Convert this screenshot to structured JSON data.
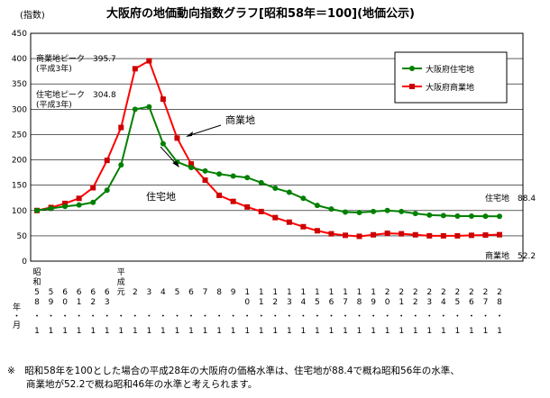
{
  "title": "大阪府の地価動向指数グラフ[昭和58年＝100](地価公示)",
  "ylabel": "(指数)",
  "row_labels": {
    "year": "年",
    "dot": "・",
    "month": "月"
  },
  "note_lines": [
    "※　昭和58年を100とした場合の平成28年の大阪府の価格水準は、住宅地が88.4で概ね昭和56年の水準、",
    "　　商業地が52.2で概ね昭和46年の水準と考えられます。"
  ],
  "annotations": {
    "commercial_peak": "商業地ピーク　395.7",
    "commercial_peak_year": "(平成3年)",
    "residential_peak": "住宅地ピーク　304.8",
    "residential_peak_year": "(平成3年)",
    "commercial_label": "商業地",
    "residential_label": "住宅地",
    "residential_end": "住宅地　88.4",
    "commercial_end": "商業地　52.2"
  },
  "colors": {
    "residential": "#008000",
    "commercial": "#ff0000",
    "marker_commercial": "#cc0000",
    "grid": "#000000"
  },
  "chart_data": {
    "type": "line",
    "title": "大阪府の地価動向指数グラフ[昭和58年＝100](地価公示)",
    "ylabel": "(指数)",
    "ylim": [
      0,
      450
    ],
    "yticks": [
      0,
      50,
      100,
      150,
      200,
      250,
      300,
      350,
      400,
      450
    ],
    "grid": true,
    "legend_position": "top-right",
    "x_tick_labels": [
      [
        "昭",
        "和",
        "5",
        "8"
      ],
      [
        "5",
        "9"
      ],
      [
        "6",
        "0"
      ],
      [
        "6",
        "1"
      ],
      [
        "6",
        "2"
      ],
      [
        "6",
        "3"
      ],
      [
        "平",
        "成",
        "元"
      ],
      [
        "2"
      ],
      [
        "3"
      ],
      [
        "4"
      ],
      [
        "5"
      ],
      [
        "6"
      ],
      [
        "7"
      ],
      [
        "8"
      ],
      [
        "9"
      ],
      [
        "1",
        "0"
      ],
      [
        "1",
        "1"
      ],
      [
        "1",
        "2"
      ],
      [
        "1",
        "3"
      ],
      [
        "1",
        "4"
      ],
      [
        "1",
        "5"
      ],
      [
        "1",
        "6"
      ],
      [
        "1",
        "7"
      ],
      [
        "1",
        "8"
      ],
      [
        "1",
        "9"
      ],
      [
        "2",
        "0"
      ],
      [
        "2",
        "1"
      ],
      [
        "2",
        "2"
      ],
      [
        "2",
        "3"
      ],
      [
        "2",
        "4"
      ],
      [
        "2",
        "5"
      ],
      [
        "2",
        "6"
      ],
      [
        "2",
        "7"
      ],
      [
        "2",
        "8"
      ]
    ],
    "month_labels": [
      "1",
      "1",
      "1",
      "1",
      "1",
      "1",
      "1",
      "1",
      "1",
      "1",
      "1",
      "1",
      "1",
      "1",
      "1",
      "1",
      "1",
      "1",
      "1",
      "1",
      "1",
      "1",
      "1",
      "1",
      "1",
      "1",
      "1",
      "1",
      "1",
      "1",
      "1",
      "1",
      "1",
      "1"
    ],
    "series": [
      {
        "name": "大阪府住宅地",
        "color": "#008000",
        "values": [
          100,
          104,
          108,
          111,
          116,
          140,
          190,
          300,
          304.8,
          232,
          196,
          185,
          178,
          172,
          168,
          165,
          155,
          144,
          136,
          124,
          110,
          103,
          97,
          96,
          98,
          100,
          98,
          94,
          91,
          90,
          89,
          89,
          88.6,
          88.4
        ]
      },
      {
        "name": "大阪府商業地",
        "color": "#ff0000",
        "values": [
          100,
          106,
          114,
          124,
          145,
          199,
          264,
          380,
          395.7,
          320,
          243,
          192,
          160,
          130,
          118,
          107,
          98,
          86,
          77,
          68,
          60,
          54,
          51,
          49,
          52,
          55,
          54,
          52,
          50,
          50,
          50,
          51,
          51.5,
          52.2
        ]
      }
    ]
  }
}
